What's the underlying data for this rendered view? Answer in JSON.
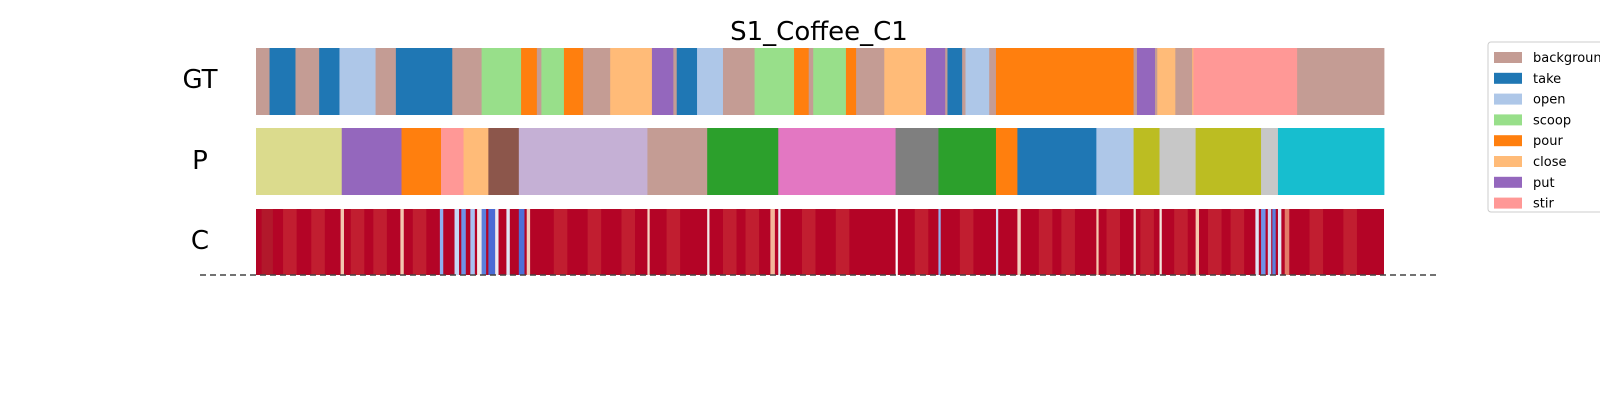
{
  "chart_data": {
    "type": "heatmap",
    "title": "S1_Coffee_C1",
    "row_labels": [
      "GT",
      "P",
      "C"
    ],
    "legend": {
      "placement": "top-right",
      "entries": [
        {
          "label": "background",
          "color": "#c49c94"
        },
        {
          "label": "take",
          "color": "#1f77b4"
        },
        {
          "label": "open",
          "color": "#aec7e8"
        },
        {
          "label": "scoop",
          "color": "#98df8a"
        },
        {
          "label": "pour",
          "color": "#ff7f0e"
        },
        {
          "label": "close",
          "color": "#ffbb78"
        },
        {
          "label": "put",
          "color": "#9467bd"
        },
        {
          "label": "stir",
          "color": "#ff9896"
        }
      ]
    },
    "x_range": [
      0,
      1
    ],
    "gt_segments": [
      {
        "end": 0.012,
        "color": "#c49c94"
      },
      {
        "end": 0.035,
        "color": "#1f77b4"
      },
      {
        "end": 0.056,
        "color": "#c49c94"
      },
      {
        "end": 0.074,
        "color": "#1f77b4"
      },
      {
        "end": 0.106,
        "color": "#aec7e8"
      },
      {
        "end": 0.124,
        "color": "#c49c94"
      },
      {
        "end": 0.174,
        "color": "#1f77b4"
      },
      {
        "end": 0.2,
        "color": "#c49c94"
      },
      {
        "end": 0.235,
        "color": "#98df8a"
      },
      {
        "end": 0.249,
        "color": "#ff7f0e"
      },
      {
        "end": 0.253,
        "color": "#c49c94"
      },
      {
        "end": 0.273,
        "color": "#98df8a"
      },
      {
        "end": 0.29,
        "color": "#ff7f0e"
      },
      {
        "end": 0.314,
        "color": "#c49c94"
      },
      {
        "end": 0.351,
        "color": "#ffbb78"
      },
      {
        "end": 0.37,
        "color": "#9467bd"
      },
      {
        "end": 0.373,
        "color": "#c49c94"
      },
      {
        "end": 0.391,
        "color": "#1f77b4"
      },
      {
        "end": 0.414,
        "color": "#aec7e8"
      },
      {
        "end": 0.442,
        "color": "#c49c94"
      },
      {
        "end": 0.477,
        "color": "#98df8a"
      },
      {
        "end": 0.49,
        "color": "#ff7f0e"
      },
      {
        "end": 0.494,
        "color": "#c49c94"
      },
      {
        "end": 0.523,
        "color": "#98df8a"
      },
      {
        "end": 0.532,
        "color": "#ff7f0e"
      },
      {
        "end": 0.557,
        "color": "#c49c94"
      },
      {
        "end": 0.594,
        "color": "#ffbb78"
      },
      {
        "end": 0.611,
        "color": "#9467bd"
      },
      {
        "end": 0.613,
        "color": "#c49c94"
      },
      {
        "end": 0.626,
        "color": "#1f77b4"
      },
      {
        "end": 0.629,
        "color": "#c49c94"
      },
      {
        "end": 0.65,
        "color": "#aec7e8"
      },
      {
        "end": 0.656,
        "color": "#c49c94"
      },
      {
        "end": 0.778,
        "color": "#ff7f0e"
      },
      {
        "end": 0.781,
        "color": "#c49c94"
      },
      {
        "end": 0.797,
        "color": "#9467bd"
      },
      {
        "end": 0.799,
        "color": "#c49c94"
      },
      {
        "end": 0.815,
        "color": "#ffbb78"
      },
      {
        "end": 0.83,
        "color": "#c49c94"
      },
      {
        "end": 0.831,
        "color": "#ffbb78"
      },
      {
        "end": 0.923,
        "color": "#ff9896"
      },
      {
        "end": 1.0,
        "color": "#c49c94"
      }
    ],
    "p_segments": [
      {
        "end": 0.076,
        "color": "#dbdb8d"
      },
      {
        "end": 0.129,
        "color": "#9467bd"
      },
      {
        "end": 0.164,
        "color": "#ff7f0e"
      },
      {
        "end": 0.184,
        "color": "#ff9896"
      },
      {
        "end": 0.206,
        "color": "#ffbb78"
      },
      {
        "end": 0.233,
        "color": "#8c564b"
      },
      {
        "end": 0.347,
        "color": "#c5b0d5"
      },
      {
        "end": 0.4,
        "color": "#c49c94"
      },
      {
        "end": 0.463,
        "color": "#2ca02c"
      },
      {
        "end": 0.567,
        "color": "#e377c2"
      },
      {
        "end": 0.605,
        "color": "#7f7f7f"
      },
      {
        "end": 0.656,
        "color": "#2ca02c"
      },
      {
        "end": 0.675,
        "color": "#ff7f0e"
      },
      {
        "end": 0.745,
        "color": "#1f77b4"
      },
      {
        "end": 0.778,
        "color": "#aec7e8"
      },
      {
        "end": 0.801,
        "color": "#bcbd22"
      },
      {
        "end": 0.833,
        "color": "#c7c7c7"
      },
      {
        "end": 0.891,
        "color": "#bcbd22"
      },
      {
        "end": 0.906,
        "color": "#c7c7c7"
      },
      {
        "end": 1.0,
        "color": "#17becf"
      }
    ],
    "c_base_color": "#b40426",
    "c_stripes": [
      {
        "pos": 0.005,
        "width": 0.01,
        "color": "#b2182b"
      },
      {
        "pos": 0.075,
        "width": 0.003,
        "color": "#f4c7b0"
      },
      {
        "pos": 0.128,
        "width": 0.003,
        "color": "#f4c7b0"
      },
      {
        "pos": 0.163,
        "width": 0.003,
        "color": "#8fb0f0"
      },
      {
        "pos": 0.176,
        "width": 0.004,
        "color": "#c6d8f5"
      },
      {
        "pos": 0.182,
        "width": 0.004,
        "color": "#6f92e6"
      },
      {
        "pos": 0.19,
        "width": 0.004,
        "color": "#a8c2f2"
      },
      {
        "pos": 0.196,
        "width": 0.005,
        "color": "#f2ece8"
      },
      {
        "pos": 0.2,
        "width": 0.004,
        "color": "#5b7fdc"
      },
      {
        "pos": 0.206,
        "width": 0.006,
        "color": "#4a6bd5"
      },
      {
        "pos": 0.212,
        "width": 0.003,
        "color": "#e8edf5"
      },
      {
        "pos": 0.222,
        "width": 0.003,
        "color": "#dfe7f5"
      },
      {
        "pos": 0.233,
        "width": 0.005,
        "color": "#4d6fd8"
      },
      {
        "pos": 0.24,
        "width": 0.003,
        "color": "#f3cdb8"
      },
      {
        "pos": 0.347,
        "width": 0.002,
        "color": "#f6d5c3"
      },
      {
        "pos": 0.4,
        "width": 0.002,
        "color": "#f2ece8"
      },
      {
        "pos": 0.456,
        "width": 0.004,
        "color": "#f4b59a"
      },
      {
        "pos": 0.463,
        "width": 0.002,
        "color": "#e8edf5"
      },
      {
        "pos": 0.567,
        "width": 0.002,
        "color": "#ffffff"
      },
      {
        "pos": 0.605,
        "width": 0.002,
        "color": "#8fb0f0"
      },
      {
        "pos": 0.656,
        "width": 0.002,
        "color": "#d6dff2"
      },
      {
        "pos": 0.675,
        "width": 0.003,
        "color": "#f2d2c0"
      },
      {
        "pos": 0.745,
        "width": 0.002,
        "color": "#f6c8ae"
      },
      {
        "pos": 0.778,
        "width": 0.002,
        "color": "#f3e5dc"
      },
      {
        "pos": 0.801,
        "width": 0.002,
        "color": "#f3e5dc"
      },
      {
        "pos": 0.833,
        "width": 0.003,
        "color": "#f6c8ae"
      },
      {
        "pos": 0.886,
        "width": 0.003,
        "color": "#dfe7f5"
      },
      {
        "pos": 0.891,
        "width": 0.004,
        "color": "#6f92e6"
      },
      {
        "pos": 0.897,
        "width": 0.003,
        "color": "#c6d8f5"
      },
      {
        "pos": 0.901,
        "width": 0.003,
        "color": "#5b7fdc"
      },
      {
        "pos": 0.906,
        "width": 0.003,
        "color": "#e3ecf8"
      },
      {
        "pos": 0.912,
        "width": 0.004,
        "color": "#e37a68"
      }
    ],
    "c_shading": [
      {
        "from": 0.0,
        "to": 0.075,
        "color": "#b40426",
        "pulses": [
          0.03,
          0.055
        ]
      },
      {
        "from": 0.078,
        "to": 0.128,
        "color": "#b40426",
        "pulses": [
          0.09,
          0.11
        ]
      },
      {
        "from": 0.131,
        "to": 0.163,
        "color": "#b40426",
        "pulses": [
          0.145
        ]
      },
      {
        "from": 0.243,
        "to": 0.347,
        "color": "#b40426",
        "pulses": [
          0.27,
          0.3,
          0.33
        ]
      },
      {
        "from": 0.349,
        "to": 0.4,
        "color": "#b40426",
        "pulses": [
          0.37
        ]
      },
      {
        "from": 0.402,
        "to": 0.463,
        "color": "#b40426",
        "pulses": [
          0.42,
          0.44
        ]
      },
      {
        "from": 0.465,
        "to": 0.567,
        "color": "#b40426",
        "pulses": [
          0.49,
          0.52
        ]
      },
      {
        "from": 0.569,
        "to": 0.656,
        "color": "#b40426",
        "pulses": [
          0.59,
          0.63
        ]
      },
      {
        "from": 0.658,
        "to": 0.745,
        "color": "#b40426",
        "pulses": [
          0.7,
          0.72
        ]
      },
      {
        "from": 0.747,
        "to": 0.833,
        "color": "#b40426",
        "pulses": [
          0.76,
          0.79,
          0.82
        ]
      },
      {
        "from": 0.836,
        "to": 0.886,
        "color": "#b40426",
        "pulses": [
          0.85,
          0.87
        ]
      },
      {
        "from": 0.916,
        "to": 1.0,
        "color": "#b40426",
        "pulses": [
          0.94,
          0.97
        ]
      }
    ]
  }
}
